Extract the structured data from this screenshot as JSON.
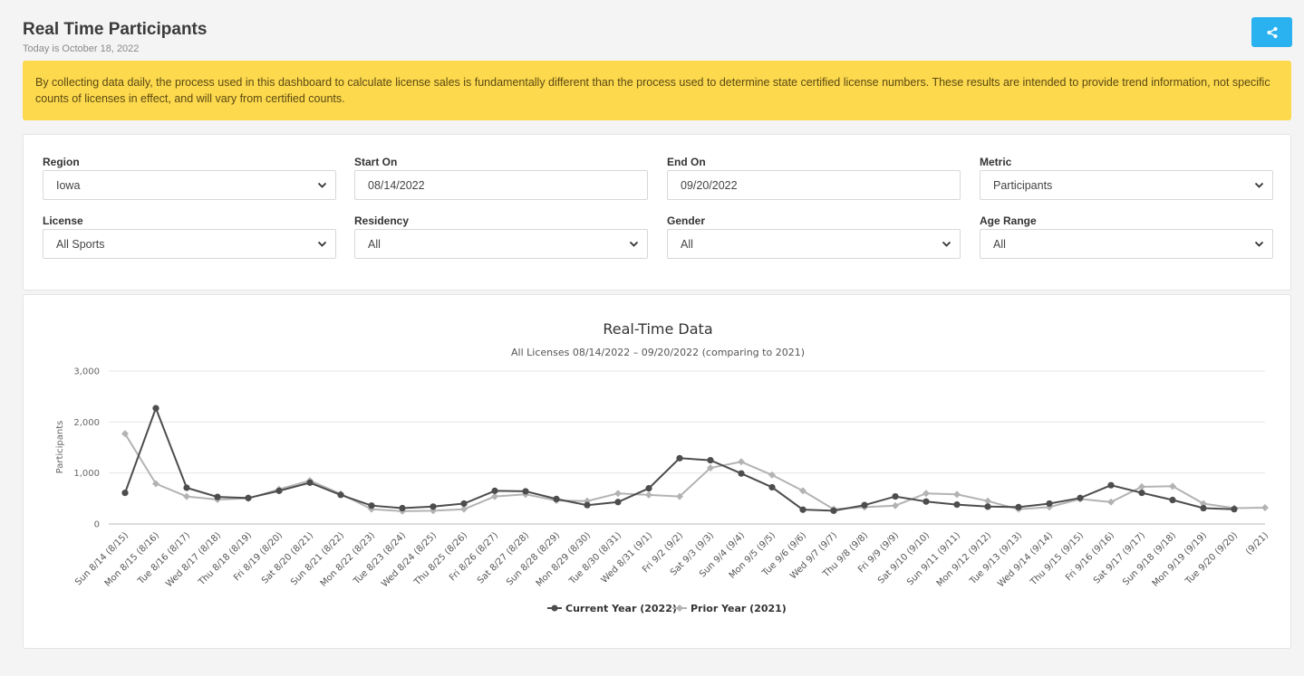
{
  "header": {
    "title": "Real Time Participants",
    "subtitle": "Today is October 18, 2022"
  },
  "share": {
    "icon": "share-icon"
  },
  "alert": {
    "text": "By collecting data daily, the process used in this dashboard to calculate license sales is fundamentally different than the process used to determine state certified license numbers. These results are intended to provide trend information, not specific counts of licenses in effect, and will vary from certified counts."
  },
  "filters": {
    "region": {
      "label": "Region",
      "value": "Iowa"
    },
    "start_on": {
      "label": "Start On",
      "value": "08/14/2022"
    },
    "end_on": {
      "label": "End On",
      "value": "09/20/2022"
    },
    "metric": {
      "label": "Metric",
      "value": "Participants"
    },
    "license": {
      "label": "License",
      "value": "All Sports"
    },
    "residency": {
      "label": "Residency",
      "value": "All"
    },
    "gender": {
      "label": "Gender",
      "value": "All"
    },
    "age_range": {
      "label": "Age Range",
      "value": "All"
    }
  },
  "colors": {
    "accent": "#2ab2f0",
    "alert_bg": "#fdd94e",
    "current_series": "#4d4d4d",
    "prior_series": "#b3b3b3"
  },
  "chart_data": {
    "type": "line",
    "title": "Real-Time Data",
    "subtitle": "All Licenses 08/14/2022 – 09/20/2022 (comparing to 2021)",
    "ylabel": "Participants",
    "xlabel": "",
    "ylim": [
      0,
      3000
    ],
    "yticks": [
      "0",
      "1,000",
      "2,000",
      "3,000"
    ],
    "grid": true,
    "legend_position": "bottom",
    "categories": [
      "Sun 8/14 (8/15)",
      "Mon 8/15 (8/16)",
      "Tue 8/16 (8/17)",
      "Wed 8/17 (8/18)",
      "Thu 8/18 (8/19)",
      "Fri 8/19 (8/20)",
      "Sat 8/20 (8/21)",
      "Sun 8/21 (8/22)",
      "Mon 8/22 (8/23)",
      "Tue 8/23 (8/24)",
      "Wed 8/24 (8/25)",
      "Thu 8/25 (8/26)",
      "Fri 8/26 (8/27)",
      "Sat 8/27 (8/28)",
      "Sun 8/28 (8/29)",
      "Mon 8/29 (8/30)",
      "Tue 8/30 (8/31)",
      "Wed 8/31 (9/1)",
      "Fri 9/2 (9/2)",
      "Sat 9/3 (9/3)",
      "Sun 9/4 (9/4)",
      "Mon 9/5 (9/5)",
      "Tue 9/6 (9/6)",
      "Wed 9/7 (9/7)",
      "Thu 9/8 (9/8)",
      "Fri 9/9 (9/9)",
      "Sat 9/10 (9/10)",
      "Sun 9/11 (9/11)",
      "Mon 9/12 (9/12)",
      "Tue 9/13 (9/13)",
      "Wed 9/14 (9/14)",
      "Thu 9/15 (9/15)",
      "Fri 9/16 (9/16)",
      "Sat 9/17 (9/17)",
      "Sun 9/18 (9/18)",
      "Mon 9/19 (9/19)",
      "Tue 9/20 (9/20)",
      "(9/21)"
    ],
    "series": [
      {
        "name": "Current Year (2022)",
        "color": "#4d4d4d",
        "values": [
          610,
          2270,
          710,
          530,
          510,
          650,
          810,
          570,
          360,
          310,
          340,
          400,
          650,
          640,
          490,
          370,
          430,
          700,
          1290,
          1250,
          990,
          720,
          280,
          260,
          370,
          540,
          440,
          380,
          340,
          330,
          400,
          510,
          760,
          610,
          470,
          310,
          290,
          null
        ]
      },
      {
        "name": "Prior Year (2021)",
        "color": "#b3b3b3",
        "values": [
          1770,
          790,
          540,
          480,
          500,
          680,
          850,
          590,
          290,
          250,
          260,
          290,
          540,
          580,
          460,
          450,
          600,
          570,
          540,
          1100,
          1220,
          960,
          650,
          290,
          330,
          360,
          600,
          580,
          450,
          290,
          330,
          490,
          430,
          730,
          740,
          400,
          310,
          320
        ]
      }
    ]
  }
}
